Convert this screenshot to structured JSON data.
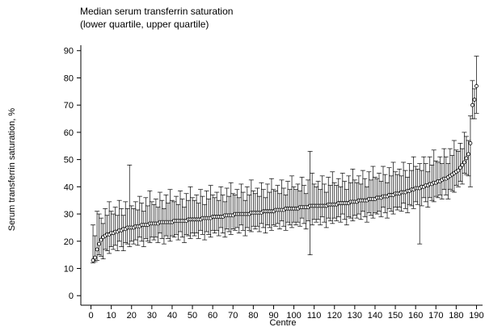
{
  "chart_data": {
    "type": "errorbar",
    "title": "Median serum transferrin saturation",
    "subtitle": "(lower quartile, upper quartile)",
    "x_label": "Centre",
    "y_label": "Serum transferrin saturation, %",
    "color": "#000000",
    "xlim": [
      -5,
      193
    ],
    "xticks": [
      0,
      10,
      20,
      30,
      40,
      50,
      60,
      70,
      80,
      90,
      100,
      110,
      120,
      130,
      140,
      150,
      160,
      170,
      180,
      190
    ],
    "ylim": [
      -3.5,
      92
    ],
    "yticks": [
      0,
      10,
      20,
      30,
      40,
      50,
      60,
      70,
      80,
      90
    ],
    "x": [
      1,
      2,
      3,
      4,
      5,
      6,
      7,
      8,
      9,
      10,
      11,
      12,
      13,
      14,
      15,
      16,
      17,
      18,
      19,
      20,
      21,
      22,
      23,
      24,
      25,
      26,
      27,
      28,
      29,
      30,
      31,
      32,
      33,
      34,
      35,
      36,
      37,
      38,
      39,
      40,
      41,
      42,
      43,
      44,
      45,
      46,
      47,
      48,
      49,
      50,
      51,
      52,
      53,
      54,
      55,
      56,
      57,
      58,
      59,
      60,
      61,
      62,
      63,
      64,
      65,
      66,
      67,
      68,
      69,
      70,
      71,
      72,
      73,
      74,
      75,
      76,
      77,
      78,
      79,
      80,
      81,
      82,
      83,
      84,
      85,
      86,
      87,
      88,
      89,
      90,
      91,
      92,
      93,
      94,
      95,
      96,
      97,
      98,
      99,
      100,
      101,
      102,
      103,
      104,
      105,
      106,
      107,
      108,
      109,
      110,
      111,
      112,
      113,
      114,
      115,
      116,
      117,
      118,
      119,
      120,
      121,
      122,
      123,
      124,
      125,
      126,
      127,
      128,
      129,
      130,
      131,
      132,
      133,
      134,
      135,
      136,
      137,
      138,
      139,
      140,
      141,
      142,
      143,
      144,
      145,
      146,
      147,
      148,
      149,
      150,
      151,
      152,
      153,
      154,
      155,
      156,
      157,
      158,
      159,
      160,
      161,
      162,
      163,
      164,
      165,
      166,
      167,
      168,
      169,
      170,
      171,
      172,
      173,
      174,
      175,
      176,
      177,
      178,
      179,
      180,
      181,
      182,
      183,
      184,
      185,
      186,
      187,
      188,
      189,
      190
    ],
    "median": [
      13,
      14,
      17,
      19,
      20.5,
      21.5,
      22,
      22.5,
      22.5,
      23,
      23,
      23.5,
      23.5,
      24,
      24,
      24.5,
      24.5,
      25,
      25,
      25,
      25,
      25.5,
      25.5,
      25.5,
      26,
      26,
      26,
      26,
      26.5,
      26.5,
      26.5,
      26.5,
      26.5,
      27,
      27,
      27,
      27,
      27,
      27,
      27,
      27.5,
      27.5,
      27.5,
      27.5,
      27.5,
      27.5,
      27.5,
      28,
      28,
      28,
      28,
      28,
      28,
      28,
      28.5,
      28.5,
      28.5,
      28.5,
      28.5,
      29,
      29,
      29,
      29,
      29,
      29,
      29.5,
      29.5,
      29.5,
      29.5,
      29.5,
      30,
      30,
      30,
      30,
      30,
      30,
      30,
      30,
      30.5,
      30.5,
      30.5,
      30.5,
      30.5,
      30.5,
      31,
      31,
      31,
      31,
      31,
      31,
      31.5,
      31.5,
      31.5,
      31.5,
      31.5,
      32,
      32,
      32,
      32,
      32,
      32,
      32,
      32.5,
      32.5,
      32.5,
      32.5,
      32.5,
      33,
      33,
      33,
      33,
      33,
      33,
      33,
      33,
      33,
      33.5,
      33.5,
      33.5,
      33.5,
      33.5,
      34,
      34,
      34,
      34,
      34,
      34,
      34.5,
      34.5,
      34.5,
      34.5,
      35,
      35,
      35,
      35,
      35,
      35.5,
      35.5,
      35.5,
      35.5,
      36,
      36,
      36,
      36.5,
      36.5,
      36.5,
      37,
      37,
      37,
      37.5,
      37.5,
      37.5,
      38,
      38,
      38,
      38.5,
      38.5,
      39,
      39,
      39.5,
      39.5,
      39.5,
      40,
      40,
      40.5,
      40.5,
      41,
      41,
      41.5,
      41.5,
      42,
      42,
      42.5,
      43,
      43,
      43.5,
      44,
      44.5,
      45,
      45.5,
      46,
      47,
      48,
      49,
      50.5,
      52,
      56,
      70,
      72,
      77
    ],
    "lower": [
      12,
      12.5,
      13,
      15,
      14.5,
      13.5,
      17,
      16.5,
      15.5,
      18,
      17,
      18.5,
      16.5,
      20,
      18,
      16.5,
      19.5,
      19,
      18,
      20,
      19,
      20.5,
      18.5,
      21.5,
      20,
      18,
      21,
      20,
      19.5,
      21.5,
      20.5,
      21.5,
      19.5,
      23,
      21,
      19,
      22,
      21,
      20,
      22,
      21.5,
      22.5,
      20.5,
      23.5,
      21.5,
      19.5,
      22.5,
      22,
      21,
      23,
      22,
      23,
      21,
      24,
      22.5,
      20.5,
      23.5,
      22.5,
      21.5,
      24,
      23,
      24,
      22,
      25,
      23,
      21.5,
      24.5,
      23.5,
      22.5,
      24.5,
      24,
      25,
      23,
      26,
      24,
      22,
      25,
      24,
      23.5,
      25.5,
      24.5,
      25.5,
      23.5,
      26.5,
      25,
      23,
      26,
      25,
      24,
      26,
      25.5,
      26.5,
      24.5,
      27.5,
      25.5,
      24,
      27,
      26,
      25,
      27,
      26,
      27,
      25.5,
      28.5,
      26.5,
      24.5,
      27.5,
      15,
      26,
      28,
      27,
      28,
      26,
      29,
      27,
      25,
      28.5,
      27.5,
      26.5,
      28.5,
      27.5,
      29,
      27,
      30,
      28,
      26,
      29,
      28.5,
      27.5,
      29.5,
      28.5,
      30,
      28,
      31,
      29,
      27,
      30.5,
      29.5,
      28.5,
      30.5,
      30,
      31,
      29,
      32.5,
      30.5,
      28.5,
      32,
      31,
      30,
      32.5,
      31.5,
      32.5,
      31,
      34,
      32,
      30.5,
      33.5,
      33,
      32,
      34.5,
      33.5,
      19,
      33,
      36,
      34.5,
      32.5,
      36,
      35,
      34.5,
      36.5,
      36,
      37,
      35.5,
      39,
      37,
      35.5,
      39,
      38.5,
      38,
      40.5,
      40,
      42,
      41,
      45,
      44.5,
      44,
      40,
      65,
      65,
      67
    ],
    "upper": [
      26,
      22,
      31,
      30,
      28.5,
      26.5,
      32,
      29.5,
      34.5,
      31,
      30,
      32.5,
      29.5,
      35,
      32,
      29.5,
      34.5,
      32,
      48,
      33,
      32,
      34.5,
      31.5,
      36.5,
      34,
      31,
      36,
      33,
      38.5,
      34.5,
      33.5,
      35.5,
      32.5,
      38,
      35,
      32,
      37,
      34,
      39,
      35,
      34.5,
      36.5,
      33.5,
      38.5,
      35.5,
      32.5,
      37.5,
      35,
      40,
      36,
      35,
      37,
      34,
      39,
      36.5,
      33.5,
      38.5,
      35.5,
      40.5,
      37,
      36,
      38,
      35,
      40,
      37,
      34.5,
      39.5,
      36.5,
      41.5,
      37.5,
      37,
      39,
      36,
      41,
      38,
      35,
      40,
      37,
      42.5,
      38.5,
      37.5,
      39.5,
      36.5,
      41.5,
      39,
      36,
      41,
      38,
      43,
      39,
      38.5,
      40.5,
      37.5,
      42.5,
      39.5,
      37,
      42,
      39,
      44,
      40,
      39,
      41,
      38.5,
      43.5,
      40.5,
      37.5,
      42.5,
      53,
      45,
      41,
      40,
      42,
      39,
      44,
      41,
      38,
      43.5,
      40.5,
      45.5,
      41.5,
      40.5,
      43,
      40,
      45,
      42,
      39,
      44,
      41.5,
      46.5,
      42.5,
      41.5,
      44,
      41,
      46,
      43,
      40,
      45.5,
      42.5,
      47.5,
      43.5,
      43,
      45,
      42,
      47.5,
      44.5,
      41.5,
      47,
      44,
      49,
      45.5,
      44.5,
      46.5,
      44,
      49,
      46,
      43.5,
      48.5,
      46,
      51,
      47.5,
      46.5,
      48.5,
      46,
      51,
      48.5,
      45.5,
      51,
      48,
      53.5,
      49.5,
      49,
      51,
      48.5,
      54,
      51,
      48.5,
      54,
      51.5,
      57,
      53.5,
      53,
      56,
      54,
      60,
      58.5,
      57,
      66,
      79,
      76,
      88
    ]
  }
}
